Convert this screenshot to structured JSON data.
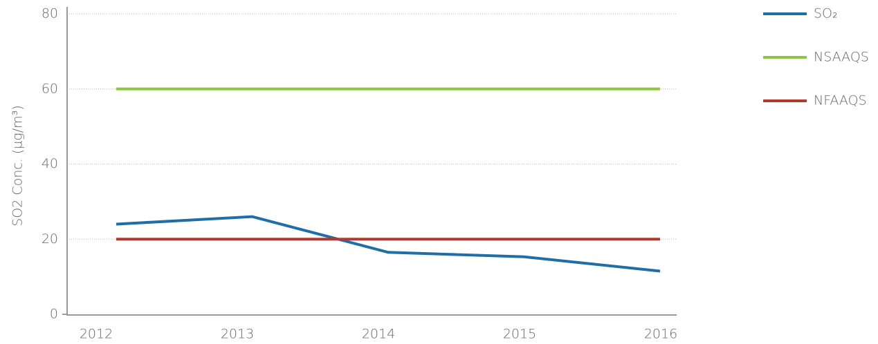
{
  "chart_data": {
    "type": "line",
    "y_label": "SO2 Conc. (µg/m³)",
    "categories": [
      "2012",
      "2013",
      "2014",
      "2015",
      "2016"
    ],
    "series": [
      {
        "name": "SO₂",
        "color": "#1f6ea8",
        "values": [
          24,
          26,
          16.5,
          15.3,
          11.5
        ]
      },
      {
        "name": "NSAAQS",
        "color": "#8dc63f",
        "values": [
          60,
          60,
          60,
          60,
          60
        ]
      },
      {
        "name": "NFAAQS",
        "color": "#b03a2e",
        "values": [
          20,
          20,
          20,
          20,
          20
        ]
      }
    ],
    "ylim": [
      0,
      80
    ],
    "yticks": [
      0,
      20,
      40,
      60,
      80
    ],
    "grid": true
  }
}
